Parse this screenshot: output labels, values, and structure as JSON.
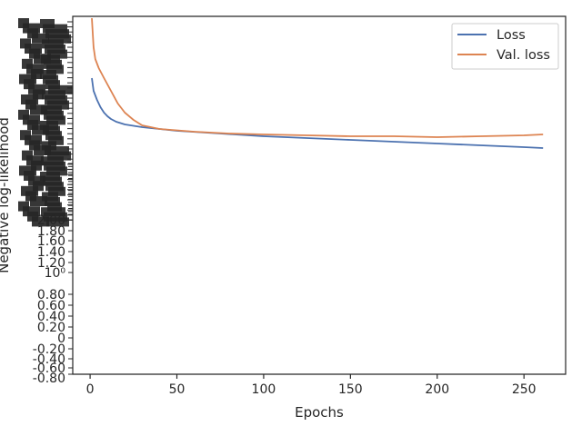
{
  "chart_data": {
    "type": "line",
    "title": "",
    "xlabel": "Epochs",
    "ylabel": "Negative log-likelihood",
    "xlim": [
      -10,
      274
    ],
    "x_ticks": [
      0,
      50,
      100,
      150,
      200,
      250
    ],
    "y_scale": "log",
    "legend_placement": "top-right",
    "grid": false,
    "readable_y_tick_labels": [
      "10⁰",
      "0.80",
      "0.60",
      "0.40",
      "0.20",
      "0",
      "-0.20",
      "-0.40",
      "-0.60",
      "-0.80",
      "2.00",
      "1.80",
      "1.60",
      "1.40",
      "1.20"
    ],
    "series": [
      {
        "name": "Loss",
        "color": "#4c72b0",
        "points": [
          [
            1,
            86
          ],
          [
            2,
            100
          ],
          [
            4,
            110
          ],
          [
            6,
            118
          ],
          [
            8,
            124
          ],
          [
            10,
            128
          ],
          [
            12,
            131
          ],
          [
            15,
            134
          ],
          [
            20,
            137
          ],
          [
            30,
            140
          ],
          [
            50,
            144
          ],
          [
            75,
            147
          ],
          [
            100,
            150
          ],
          [
            125,
            152
          ],
          [
            150,
            154
          ],
          [
            175,
            156
          ],
          [
            200,
            158
          ],
          [
            225,
            160
          ],
          [
            250,
            162
          ],
          [
            261,
            163
          ]
        ]
      },
      {
        "name": "Val. loss",
        "color": "#dd8452",
        "points": [
          [
            1,
            20
          ],
          [
            2,
            52
          ],
          [
            3,
            65
          ],
          [
            5,
            75
          ],
          [
            8,
            86
          ],
          [
            12,
            100
          ],
          [
            16,
            114
          ],
          [
            20,
            124
          ],
          [
            25,
            132
          ],
          [
            30,
            138
          ],
          [
            40,
            142
          ],
          [
            60,
            145
          ],
          [
            80,
            147
          ],
          [
            100,
            148
          ],
          [
            125,
            149
          ],
          [
            150,
            150
          ],
          [
            175,
            150
          ],
          [
            200,
            151
          ],
          [
            225,
            150
          ],
          [
            250,
            149
          ],
          [
            261,
            148
          ]
        ]
      }
    ]
  }
}
